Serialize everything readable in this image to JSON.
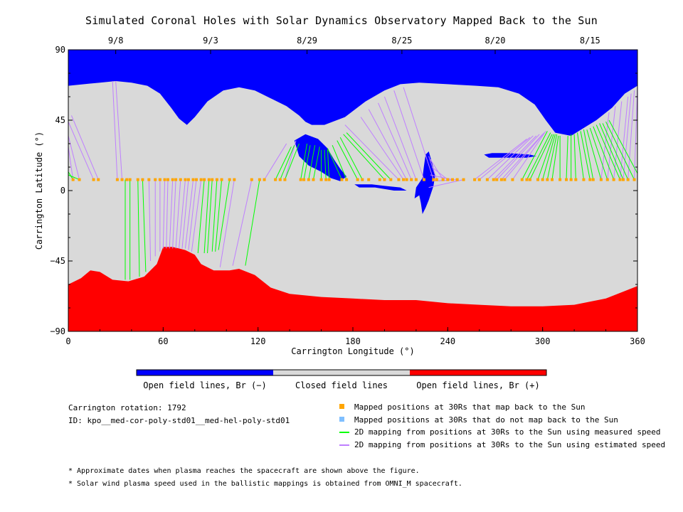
{
  "title": "Simulated Coronal Holes with Solar Dynamics Observatory Mapped Back to the Sun",
  "chart_data": {
    "type": "map",
    "xlabel": "Carrington Longitude (°)",
    "ylabel": "Carrington Latitude (°)",
    "xlim": [
      0,
      360
    ],
    "ylim": [
      -90,
      90
    ],
    "xticks": [
      0,
      60,
      120,
      180,
      240,
      300,
      360
    ],
    "yticks": [
      90,
      45,
      0,
      -45,
      -90
    ],
    "xtick_labels": [
      "0",
      "60",
      "120",
      "180",
      "240",
      "300",
      "360"
    ],
    "ytick_labels": [
      "90",
      "45",
      "0",
      "−45",
      "−90"
    ],
    "top_axis_dates": [
      {
        "label": "9/8",
        "lon": 30
      },
      {
        "label": "9/3",
        "lon": 90
      },
      {
        "label": "8/29",
        "lon": 151
      },
      {
        "label": "8/25",
        "lon": 211
      },
      {
        "label": "8/20",
        "lon": 270
      },
      {
        "label": "8/15",
        "lon": 330
      }
    ],
    "colors": {
      "open_negative": "#0000ff",
      "closed": "#d9d9d9",
      "open_positive": "#ff0000",
      "mapped_points": "#ffa500",
      "unmapped_points": "#7fbfff",
      "measured_speed_lines": "#00ff00",
      "estimated_speed_lines": "#bf7fff"
    },
    "north_boundary": [
      [
        0,
        67
      ],
      [
        10,
        68
      ],
      [
        20,
        69
      ],
      [
        30,
        70
      ],
      [
        40,
        69
      ],
      [
        50,
        67
      ],
      [
        58,
        62
      ],
      [
        65,
        53
      ],
      [
        70,
        46
      ],
      [
        75,
        42
      ],
      [
        80,
        47
      ],
      [
        88,
        57
      ],
      [
        98,
        64
      ],
      [
        108,
        66
      ],
      [
        118,
        64
      ],
      [
        128,
        59
      ],
      [
        138,
        54
      ],
      [
        146,
        48
      ],
      [
        150,
        44
      ],
      [
        154,
        42
      ],
      [
        162,
        42
      ],
      [
        175,
        47
      ],
      [
        188,
        57
      ],
      [
        200,
        64
      ],
      [
        210,
        68
      ],
      [
        222,
        69
      ],
      [
        240,
        68
      ],
      [
        258,
        67
      ],
      [
        272,
        66
      ],
      [
        285,
        62
      ],
      [
        295,
        55
      ],
      [
        302,
        45
      ],
      [
        308,
        37
      ],
      [
        318,
        35
      ],
      [
        326,
        40
      ],
      [
        334,
        45
      ],
      [
        344,
        53
      ],
      [
        352,
        62
      ],
      [
        360,
        67
      ]
    ],
    "south_boundary": [
      [
        0,
        -60
      ],
      [
        8,
        -56
      ],
      [
        14,
        -51
      ],
      [
        20,
        -52
      ],
      [
        28,
        -57
      ],
      [
        38,
        -58
      ],
      [
        48,
        -55
      ],
      [
        56,
        -47
      ],
      [
        60,
        -36
      ],
      [
        66,
        -36
      ],
      [
        74,
        -38
      ],
      [
        80,
        -41
      ],
      [
        84,
        -47
      ],
      [
        92,
        -51
      ],
      [
        102,
        -51
      ],
      [
        108,
        -50
      ],
      [
        118,
        -54
      ],
      [
        128,
        -62
      ],
      [
        140,
        -66
      ],
      [
        160,
        -68
      ],
      [
        180,
        -69
      ],
      [
        200,
        -70
      ],
      [
        220,
        -70
      ],
      [
        240,
        -72
      ],
      [
        260,
        -73
      ],
      [
        280,
        -74
      ],
      [
        300,
        -74
      ],
      [
        320,
        -73
      ],
      [
        340,
        -69
      ],
      [
        360,
        -61
      ]
    ],
    "blobs": [
      {
        "polarity": "negative",
        "points": [
          [
            143,
            32
          ],
          [
            146,
            22
          ],
          [
            152,
            16
          ],
          [
            160,
            12
          ],
          [
            166,
            8
          ],
          [
            172,
            6
          ],
          [
            176,
            9
          ],
          [
            172,
            14
          ],
          [
            168,
            20
          ],
          [
            164,
            27
          ],
          [
            158,
            33
          ],
          [
            150,
            36
          ]
        ]
      },
      {
        "polarity": "negative",
        "points": [
          [
            228,
            25
          ],
          [
            230,
            18
          ],
          [
            232,
            10
          ],
          [
            231,
            3
          ],
          [
            228,
            -6
          ],
          [
            226,
            -11
          ],
          [
            224,
            -15
          ],
          [
            223,
            -8
          ],
          [
            222,
            -3
          ],
          [
            219,
            -5
          ],
          [
            220,
            2
          ],
          [
            224,
            8
          ],
          [
            225,
            16
          ],
          [
            226,
            23
          ]
        ]
      },
      {
        "polarity": "negative",
        "points": [
          [
            263,
            23
          ],
          [
            268,
            24
          ],
          [
            278,
            24
          ],
          [
            292,
            23
          ],
          [
            296,
            22
          ],
          [
            290,
            21
          ],
          [
            276,
            21
          ],
          [
            266,
            21
          ]
        ]
      },
      {
        "polarity": "negative",
        "points": [
          [
            181,
            4
          ],
          [
            192,
            4
          ],
          [
            200,
            3
          ],
          [
            210,
            2
          ],
          [
            214,
            0
          ],
          [
            206,
            0
          ],
          [
            194,
            2
          ],
          [
            184,
            2
          ]
        ]
      }
    ],
    "mapped_latitude": 7,
    "mapped_longitudes": [
      3,
      7,
      16,
      19,
      31,
      34,
      37,
      39,
      44,
      47,
      51,
      55,
      58,
      61,
      63,
      66,
      68,
      71,
      74,
      76,
      79,
      81,
      84,
      86,
      89,
      91,
      94,
      97,
      102,
      105,
      116,
      121,
      124,
      131,
      134,
      137,
      147,
      149,
      152,
      155,
      160,
      163,
      165,
      173,
      176,
      183,
      186,
      190,
      197,
      200,
      204,
      209,
      212,
      214,
      217,
      220,
      225,
      231,
      233,
      237,
      240,
      243,
      246,
      250,
      257,
      260,
      265,
      269,
      271,
      274,
      276,
      281,
      287,
      290,
      292,
      297,
      300,
      303,
      306,
      311,
      315,
      318,
      321,
      326,
      330,
      332,
      337,
      341,
      345,
      349,
      351,
      354,
      358
    ],
    "measured_lines": [
      [
        3,
        7,
        0,
        12
      ],
      [
        7,
        7,
        0,
        10
      ],
      [
        36,
        7,
        36,
        -57
      ],
      [
        39,
        7,
        39,
        -57
      ],
      [
        44,
        7,
        45,
        -55
      ],
      [
        47,
        7,
        49,
        -52
      ],
      [
        86,
        7,
        82,
        -40
      ],
      [
        89,
        7,
        86,
        -40
      ],
      [
        91,
        7,
        88,
        -40
      ],
      [
        94,
        7,
        91,
        -39
      ],
      [
        97,
        7,
        93,
        -39
      ],
      [
        102,
        7,
        95,
        -38
      ],
      [
        121,
        7,
        112,
        -48
      ],
      [
        131,
        7,
        141,
        28
      ],
      [
        134,
        7,
        143,
        29
      ],
      [
        137,
        7,
        146,
        30
      ],
      [
        147,
        7,
        151,
        30
      ],
      [
        149,
        7,
        153,
        29
      ],
      [
        152,
        7,
        156,
        29
      ],
      [
        155,
        7,
        159,
        28
      ],
      [
        160,
        7,
        160,
        26
      ],
      [
        163,
        7,
        162,
        26
      ],
      [
        165,
        7,
        164,
        26
      ],
      [
        173,
        7,
        164,
        27
      ],
      [
        176,
        7,
        167,
        29
      ],
      [
        183,
        7,
        170,
        32
      ],
      [
        186,
        7,
        172,
        34
      ],
      [
        200,
        7,
        174,
        36
      ],
      [
        204,
        7,
        176,
        37
      ],
      [
        287,
        7,
        303,
        38
      ],
      [
        290,
        7,
        305,
        37
      ],
      [
        292,
        7,
        306,
        36
      ],
      [
        297,
        7,
        307,
        36
      ],
      [
        300,
        7,
        308,
        36
      ],
      [
        303,
        7,
        309,
        36
      ],
      [
        306,
        7,
        310,
        35
      ],
      [
        311,
        7,
        311,
        35
      ],
      [
        315,
        7,
        316,
        35
      ],
      [
        318,
        7,
        318,
        36
      ],
      [
        321,
        7,
        320,
        36
      ],
      [
        326,
        7,
        322,
        37
      ],
      [
        330,
        7,
        324,
        38
      ],
      [
        332,
        7,
        326,
        39
      ],
      [
        337,
        7,
        328,
        39
      ],
      [
        341,
        7,
        330,
        40
      ],
      [
        345,
        7,
        332,
        41
      ],
      [
        349,
        7,
        334,
        42
      ],
      [
        351,
        7,
        336,
        43
      ],
      [
        354,
        7,
        338,
        43
      ],
      [
        358,
        7,
        340,
        44
      ],
      [
        360,
        11,
        342,
        45
      ]
    ],
    "estimated_lines": [
      [
        3,
        7,
        0,
        28
      ],
      [
        7,
        7,
        0,
        35
      ],
      [
        16,
        7,
        0,
        44
      ],
      [
        19,
        7,
        2,
        48
      ],
      [
        31,
        7,
        28,
        70
      ],
      [
        34,
        7,
        30,
        70
      ],
      [
        51,
        7,
        52,
        -45
      ],
      [
        55,
        7,
        55,
        -42
      ],
      [
        58,
        7,
        58,
        -39
      ],
      [
        61,
        7,
        60,
        -37
      ],
      [
        63,
        7,
        62,
        -37
      ],
      [
        66,
        7,
        64,
        -37
      ],
      [
        68,
        7,
        66,
        -37
      ],
      [
        71,
        7,
        68,
        -37
      ],
      [
        74,
        7,
        70,
        -37
      ],
      [
        76,
        7,
        72,
        -37
      ],
      [
        79,
        7,
        74,
        -37
      ],
      [
        81,
        7,
        76,
        -38
      ],
      [
        84,
        7,
        78,
        -39
      ],
      [
        105,
        7,
        96,
        -49
      ],
      [
        116,
        7,
        104,
        -48
      ],
      [
        124,
        7,
        138,
        30
      ],
      [
        137,
        7,
        144,
        32
      ],
      [
        209,
        7,
        175,
        42
      ],
      [
        212,
        7,
        185,
        47
      ],
      [
        214,
        7,
        190,
        52
      ],
      [
        217,
        7,
        196,
        56
      ],
      [
        220,
        7,
        200,
        60
      ],
      [
        225,
        7,
        206,
        64
      ],
      [
        231,
        7,
        212,
        66
      ],
      [
        233,
        7,
        228,
        22
      ],
      [
        237,
        7,
        229,
        20
      ],
      [
        240,
        7,
        230,
        15
      ],
      [
        243,
        7,
        229,
        10
      ],
      [
        246,
        7,
        230,
        6
      ],
      [
        250,
        7,
        228,
        2
      ],
      [
        257,
        7,
        290,
        33
      ],
      [
        260,
        7,
        292,
        34
      ],
      [
        265,
        7,
        294,
        35
      ],
      [
        269,
        7,
        296,
        35
      ],
      [
        271,
        7,
        298,
        36
      ],
      [
        274,
        7,
        300,
        36
      ],
      [
        276,
        7,
        301,
        37
      ],
      [
        281,
        7,
        302,
        38
      ],
      [
        337,
        7,
        342,
        50
      ],
      [
        341,
        7,
        346,
        54
      ],
      [
        345,
        7,
        350,
        57
      ],
      [
        349,
        7,
        354,
        60
      ],
      [
        351,
        7,
        356,
        62
      ],
      [
        354,
        7,
        358,
        64
      ],
      [
        358,
        7,
        360,
        66
      ]
    ]
  },
  "colorbar": {
    "labels": [
      "Open field lines, Br (−)",
      "Closed field lines",
      "Open field lines, Br (+)"
    ]
  },
  "info": {
    "rotation": "Carrington rotation: 1792",
    "id": "ID: kpo__med-cor-poly-std01__med-hel-poly-std01"
  },
  "legend": {
    "mapped": "Mapped positions at 30Rs that map back to the Sun",
    "unmapped": "Mapped positions at 30Rs that do not map back to the Sun",
    "measured": "2D mapping from positions at 30Rs to the Sun using measured speed",
    "estimated": "2D mapping from positions at 30Rs to the Sun using estimated speed"
  },
  "notes": [
    "* Approximate dates when plasma reaches the spacecraft are shown above the figure.",
    "* Solar wind plasma speed used in the ballistic mappings is obtained from OMNI_M spacecraft."
  ]
}
